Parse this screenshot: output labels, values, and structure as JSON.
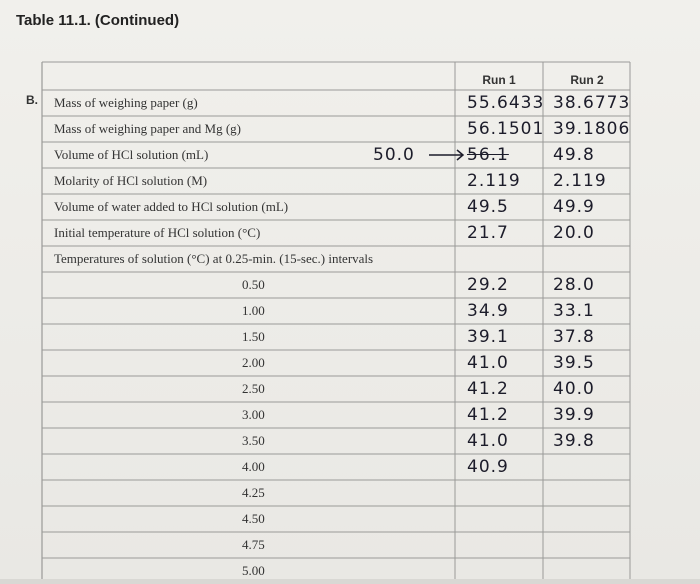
{
  "header": {
    "title": "Table 11.1. (Continued)"
  },
  "table": {
    "section": "B.",
    "columns": [
      "Run 1",
      "Run 2"
    ],
    "rows": [
      {
        "label": "Mass of weighing paper (g)",
        "run1": "55.6433",
        "run2": "38.6773"
      },
      {
        "label": "Mass of weighing paper and Mg (g)",
        "run1": "56.1501",
        "run2": "39.1806"
      },
      {
        "label": "Volume of HCl solution (mL)",
        "run1_correction": "50.0",
        "run1": "56.1",
        "run2": "49.8"
      },
      {
        "label": "Molarity of HCl solution (M)",
        "run1": "2.119",
        "run2": "2.119"
      },
      {
        "label": "Volume of water added to HCl solution (mL)",
        "run1": "49.5",
        "run2": "49.9"
      },
      {
        "label": "Initial temperature of HCl solution (°C)",
        "run1": "21.7",
        "run2": "20.0"
      },
      {
        "label": "Temperatures of solution (°C) at 0.25-min. (15-sec.) intervals"
      }
    ],
    "intervals": [
      {
        "time": "0.50",
        "run1": "29.2",
        "run2": "28.0"
      },
      {
        "time": "1.00",
        "run1": "34.9",
        "run2": "33.1"
      },
      {
        "time": "1.50",
        "run1": "39.1",
        "run2": "37.8"
      },
      {
        "time": "2.00",
        "run1": "41.0",
        "run2": "39.5"
      },
      {
        "time": "2.50",
        "run1": "41.2",
        "run2": "40.0"
      },
      {
        "time": "3.00",
        "run1": "41.2",
        "run2": "39.9"
      },
      {
        "time": "3.50",
        "run1": "41.0",
        "run2": "39.8"
      },
      {
        "time": "4.00",
        "run1": "40.9"
      },
      {
        "time": "4.25"
      },
      {
        "time": "4.50"
      },
      {
        "time": "4.75"
      },
      {
        "time": "5.00"
      }
    ]
  }
}
